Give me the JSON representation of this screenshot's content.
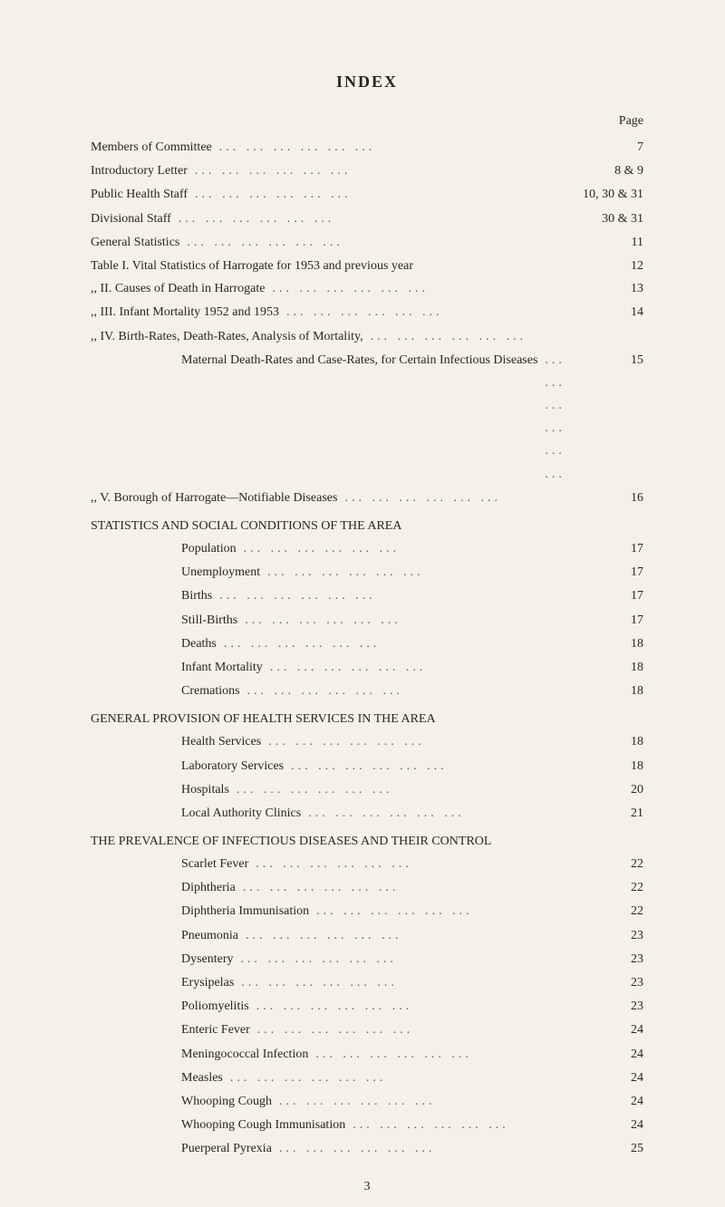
{
  "title": "INDEX",
  "pageLabel": "Page",
  "footerPage": "3",
  "dotsText": "... ... ... ... ... ... ...",
  "entries": [
    {
      "text": "Members of Committee",
      "page": "7",
      "indent": 0
    },
    {
      "text": "Introductory Letter",
      "page": "8 & 9",
      "indent": 0
    },
    {
      "text": "Public Health Staff",
      "page": "10, 30 & 31",
      "indent": 0
    },
    {
      "text": "Divisional Staff",
      "page": "30 & 31",
      "indent": 0
    },
    {
      "text": "General Statistics",
      "page": "11",
      "indent": 0
    },
    {
      "text": "Table I.   Vital Statistics of Harrogate for 1953 and previous year",
      "page": "12",
      "indent": 0,
      "noDots": true
    },
    {
      "text": "   ,,   II.   Causes of Death in Harrogate",
      "page": "13",
      "indent": 0
    },
    {
      "text": "   ,,   III.  Infant Mortality 1952 and 1953",
      "page": "14",
      "indent": 0
    },
    {
      "text": "   ,,   IV.  Birth-Rates, Death-Rates,  Analysis  of  Mortality,",
      "page": "",
      "indent": 0,
      "noPage": true
    },
    {
      "text": "Maternal Death-Rates and Case-Rates, for Certain Infectious Diseases",
      "page": "15",
      "indent": 2,
      "wrap": true
    },
    {
      "text": "   ,,   V.   Borough of Harrogate—Notifiable Diseases",
      "page": "16",
      "indent": 0
    }
  ],
  "sections": [
    {
      "header": "STATISTICS AND SOCIAL CONDITIONS OF THE AREA",
      "items": [
        {
          "text": "Population",
          "page": "17"
        },
        {
          "text": "Unemployment",
          "page": "17"
        },
        {
          "text": "Births",
          "page": "17"
        },
        {
          "text": "Still-Births",
          "page": "17"
        },
        {
          "text": "Deaths",
          "page": "18"
        },
        {
          "text": "Infant Mortality",
          "page": "18"
        },
        {
          "text": "Cremations",
          "page": "18"
        }
      ]
    },
    {
      "header": "GENERAL PROVISION OF HEALTH SERVICES IN THE AREA",
      "headerWrap": true,
      "items": [
        {
          "text": "Health Services",
          "page": "18"
        },
        {
          "text": "Laboratory Services",
          "page": "18"
        },
        {
          "text": "Hospitals",
          "page": "20"
        },
        {
          "text": "Local Authority Clinics",
          "page": "21"
        }
      ]
    },
    {
      "header": "THE PREVALENCE OF INFECTIOUS DISEASES AND THEIR CONTROL",
      "headerWrap": true,
      "items": [
        {
          "text": "Scarlet Fever",
          "page": "22"
        },
        {
          "text": "Diphtheria",
          "page": "22"
        },
        {
          "text": "Diphtheria Immunisation",
          "page": "22"
        },
        {
          "text": "Pneumonia",
          "page": "23"
        },
        {
          "text": "Dysentery",
          "page": "23"
        },
        {
          "text": "Erysipelas",
          "page": "23"
        },
        {
          "text": "Poliomyelitis",
          "page": "23"
        },
        {
          "text": "Enteric Fever",
          "page": "24"
        },
        {
          "text": "Meningococcal Infection",
          "page": "24"
        },
        {
          "text": "Measles",
          "page": "24"
        },
        {
          "text": "Whooping Cough",
          "page": "24"
        },
        {
          "text": "Whooping Cough Immunisation",
          "page": "24"
        },
        {
          "text": "Puerperal Pyrexia",
          "page": "25"
        }
      ]
    }
  ]
}
